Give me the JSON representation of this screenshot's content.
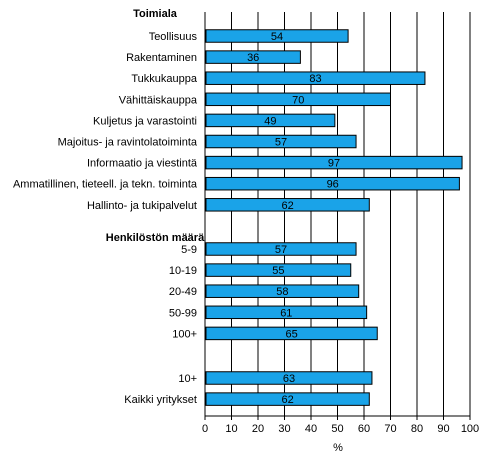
{
  "chart_data": {
    "type": "bar",
    "orientation": "horizontal",
    "xlabel": "%",
    "xlim": [
      0,
      100
    ],
    "xticks": [
      0,
      10,
      20,
      30,
      40,
      50,
      60,
      70,
      80,
      90,
      100
    ],
    "grid": "vertical",
    "bar_color": "#1aa3e8",
    "groups": [
      {
        "header": "Toimiala",
        "categories": [
          "Teollisuus",
          "Rakentaminen",
          "Tukkukauppa",
          "Vähittäiskauppa",
          "Kuljetus ja varastointi",
          "Majoitus- ja ravintolatoiminta",
          "Informaatio ja viestintä",
          "Ammatillinen, tieteell. ja tekn. toiminta",
          "Hallinto- ja tukipalvelut"
        ],
        "values": [
          54,
          36,
          83,
          70,
          49,
          57,
          97,
          96,
          62
        ]
      },
      {
        "header": "Henkilöstön määrä",
        "categories": [
          "5-9",
          "10-19",
          "20-49",
          "50-99",
          "100+"
        ],
        "values": [
          57,
          55,
          58,
          61,
          65
        ]
      },
      {
        "header": "",
        "categories": [
          "10+",
          "Kaikki yritykset"
        ],
        "values": [
          63,
          62
        ]
      }
    ]
  }
}
